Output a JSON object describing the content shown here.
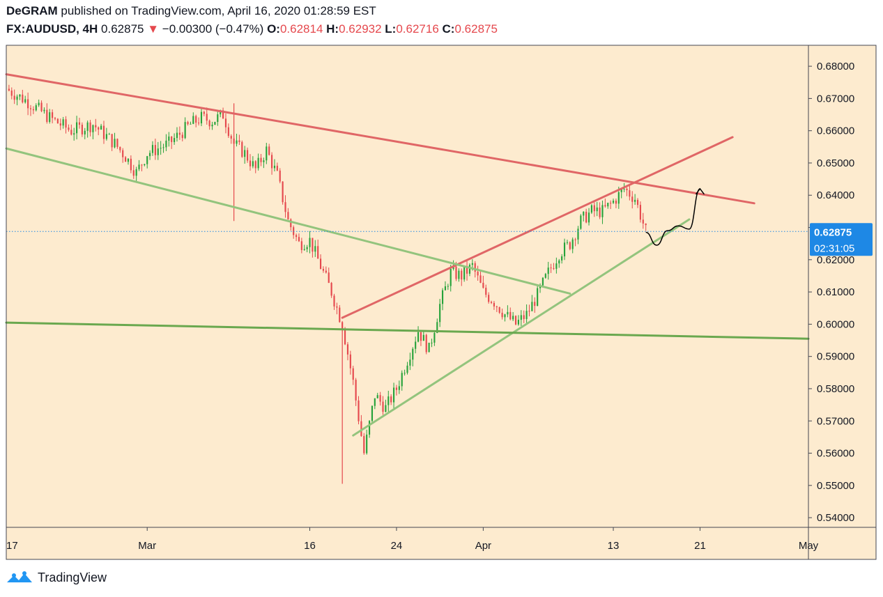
{
  "header": {
    "author": "DeGRAM",
    "published_text": "published on TradingView.com, April 16, 2020 01:28:59 EST",
    "symbol": "FX:AUDUSD, 4H",
    "last_price": "0.62875",
    "change_arrow": "▼",
    "change": "−0.00300 (−0.47%)",
    "open_label": "O:",
    "open": "0.62814",
    "high_label": "H:",
    "high": "0.62932",
    "low_label": "L:",
    "low": "0.62716",
    "close_label": "C:",
    "close": "0.62875"
  },
  "footer": {
    "brand": "TradingView"
  },
  "colors": {
    "background": "#fdebcf",
    "up": "#26a23a",
    "down": "#e5484d",
    "red_line": "#e06666",
    "green_line": "#93c47d",
    "support_line": "#6aa84f",
    "price_tag": "#1e88e5"
  },
  "chart_data": {
    "type": "candlestick",
    "symbol": "FX:AUDUSD",
    "timeframe": "4H",
    "ylim": [
      0.537,
      0.6865
    ],
    "y_ticks": [
      "0.68000",
      "0.67000",
      "0.66000",
      "0.65000",
      "0.64000",
      "0.63000",
      "0.62000",
      "0.61000",
      "0.60000",
      "0.59000",
      "0.58000",
      "0.57000",
      "0.56000",
      "0.55000",
      "0.54000"
    ],
    "x_axis_range": [
      "2020-02-17",
      "2020-05-01"
    ],
    "x_ticks": [
      {
        "label": "17",
        "date": "2020-02-17"
      },
      {
        "label": "Mar",
        "date": "2020-03-01"
      },
      {
        "label": "16",
        "date": "2020-03-16"
      },
      {
        "label": "24",
        "date": "2020-03-24"
      },
      {
        "label": "Apr",
        "date": "2020-04-01"
      },
      {
        "label": "13",
        "date": "2020-04-13"
      },
      {
        "label": "21",
        "date": "2020-04-21"
      },
      {
        "label": "May",
        "date": "2020-05-01"
      }
    ],
    "current_price": 0.62875,
    "current_price_label": "0.62875",
    "countdown_label": "02:31:05",
    "price_path": [
      [
        "2020-02-17",
        0.673
      ],
      [
        "2020-02-19",
        0.669
      ],
      [
        "2020-02-21",
        0.664
      ],
      [
        "2020-02-23",
        0.66
      ],
      [
        "2020-02-25",
        0.662
      ],
      [
        "2020-02-27",
        0.656
      ],
      [
        "2020-02-28",
        0.652
      ],
      [
        "2020-02-29",
        0.647
      ],
      [
        "2020-03-01",
        0.653
      ],
      [
        "2020-03-03",
        0.656
      ],
      [
        "2020-03-05",
        0.662
      ],
      [
        "2020-03-06",
        0.664
      ],
      [
        "2020-03-07",
        0.663
      ],
      [
        "2020-03-08",
        0.665
      ],
      [
        "2020-03-09",
        0.656
      ],
      [
        "2020-03-10",
        0.653
      ],
      [
        "2020-03-11",
        0.648
      ],
      [
        "2020-03-12",
        0.654
      ],
      [
        "2020-03-13",
        0.646
      ],
      [
        "2020-03-14",
        0.632
      ],
      [
        "2020-03-15",
        0.625
      ],
      [
        "2020-03-16",
        0.626
      ],
      [
        "2020-03-17",
        0.618
      ],
      [
        "2020-03-18",
        0.61
      ],
      [
        "2020-03-19",
        0.6
      ],
      [
        "2020-03-20",
        0.582
      ],
      [
        "2020-03-21",
        0.56
      ],
      [
        "2020-03-22",
        0.578
      ],
      [
        "2020-03-23",
        0.574
      ],
      [
        "2020-03-24",
        0.58
      ],
      [
        "2020-03-25",
        0.589
      ],
      [
        "2020-03-26",
        0.598
      ],
      [
        "2020-03-27",
        0.592
      ],
      [
        "2020-03-28",
        0.606
      ],
      [
        "2020-03-29",
        0.616
      ],
      [
        "2020-03-30",
        0.615
      ],
      [
        "2020-03-31",
        0.618
      ],
      [
        "2020-04-01",
        0.61
      ],
      [
        "2020-04-02",
        0.607
      ],
      [
        "2020-04-03",
        0.603
      ],
      [
        "2020-04-04",
        0.6
      ],
      [
        "2020-04-05",
        0.603
      ],
      [
        "2020-04-06",
        0.609
      ],
      [
        "2020-04-07",
        0.616
      ],
      [
        "2020-04-08",
        0.622
      ],
      [
        "2020-04-09",
        0.625
      ],
      [
        "2020-04-10",
        0.632
      ],
      [
        "2020-04-11",
        0.635
      ],
      [
        "2020-04-12",
        0.635
      ],
      [
        "2020-04-13",
        0.638
      ],
      [
        "2020-04-14",
        0.642
      ],
      [
        "2020-04-15",
        0.639
      ],
      [
        "2020-04-16",
        0.6288
      ]
    ],
    "wick_extremes": [
      {
        "date": "2020-03-09",
        "high": 0.6685
      },
      {
        "date": "2020-03-09",
        "low": 0.632
      },
      {
        "date": "2020-03-19",
        "low": 0.5505
      }
    ],
    "lines": [
      {
        "color": "red",
        "points": [
          [
            "2020-02-17",
            0.6775
          ],
          [
            "2020-04-26",
            0.6375
          ]
        ]
      },
      {
        "color": "red",
        "points": [
          [
            "2020-03-19",
            0.602
          ],
          [
            "2020-04-24",
            0.658
          ]
        ]
      },
      {
        "color": "green",
        "points": [
          [
            "2020-02-17",
            0.6545
          ],
          [
            "2020-04-09",
            0.6095
          ]
        ]
      },
      {
        "color": "green",
        "points": [
          [
            "2020-03-20",
            0.5655
          ],
          [
            "2020-04-20",
            0.6325
          ]
        ]
      },
      {
        "color": "dark-green",
        "points": [
          [
            "2020-02-17",
            0.6005
          ],
          [
            "2020-05-01",
            0.5955
          ]
        ]
      }
    ],
    "projection_arrow": [
      [
        "2020-04-16",
        0.6285
      ],
      [
        "2020-04-17",
        0.6245
      ],
      [
        "2020-04-18",
        0.629
      ],
      [
        "2020-04-19",
        0.6305
      ],
      [
        "2020-04-20",
        0.6295
      ],
      [
        "2020-04-21",
        0.642
      ]
    ]
  }
}
